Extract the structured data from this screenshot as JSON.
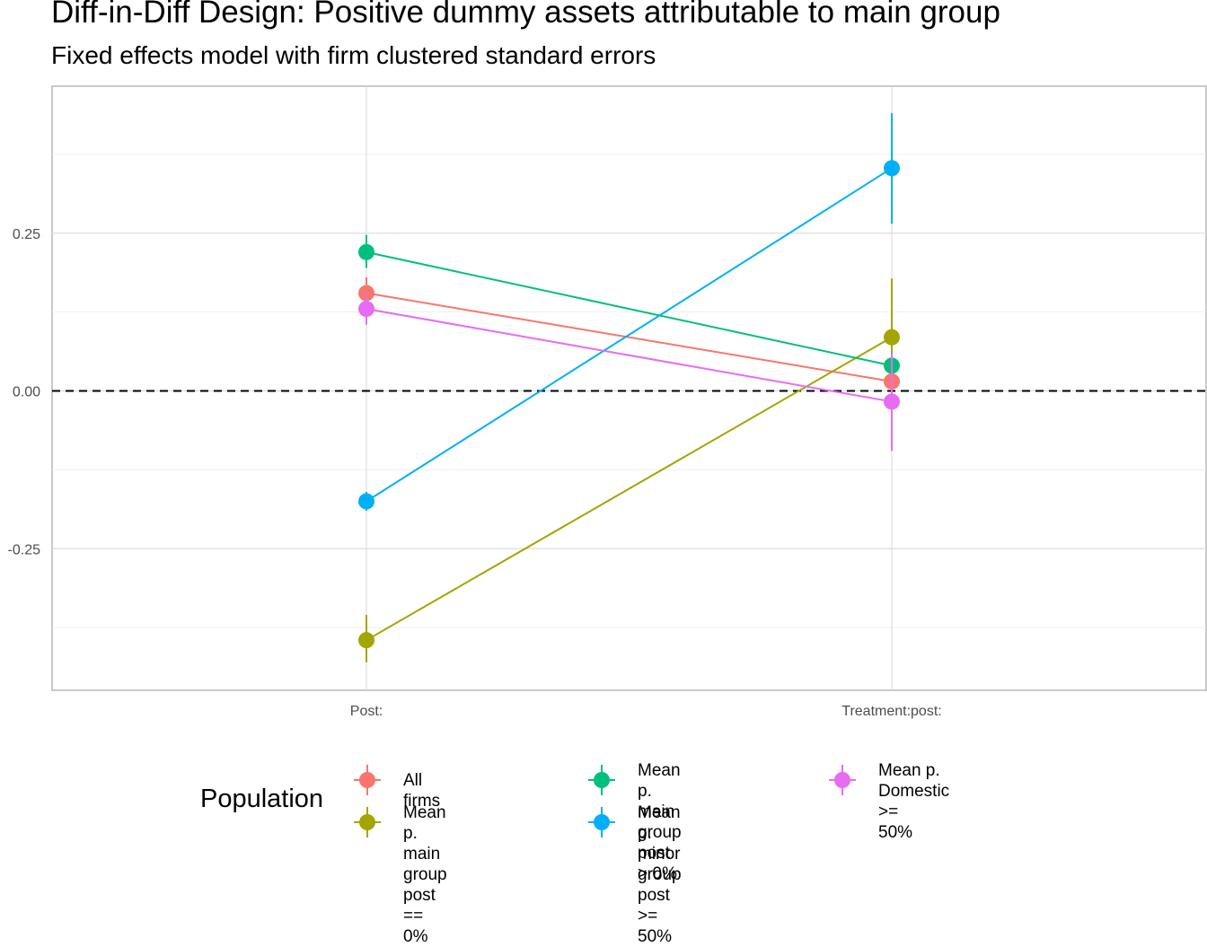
{
  "chart_data": {
    "type": "line",
    "title": "Diff-in-Diff Design: Positive dummy assets attributable to main group",
    "subtitle": "Fixed effects model with firm clustered standard errors",
    "categories": [
      "Post:",
      "Treatment:post:"
    ],
    "ylim": [
      -0.475,
      0.48
    ],
    "yticks": [
      -0.25,
      0.0,
      0.25
    ],
    "ytick_labels": [
      "-0.25",
      "0.00",
      "0.25"
    ],
    "reference_line": {
      "y": 0,
      "style": "dashed"
    },
    "grid": true,
    "legend": {
      "title": "Population",
      "position": "bottom"
    },
    "series": [
      {
        "name": "All firms",
        "color": "#F8766D",
        "values": [
          0.155,
          0.015
        ],
        "ci_low": [
          0.13,
          -0.005
        ],
        "ci_high": [
          0.18,
          0.035
        ]
      },
      {
        "name": "Mean p. main group\npost == 0%",
        "color": "#A3A500",
        "values": [
          -0.395,
          0.085
        ],
        "ci_low": [
          -0.43,
          -0.01
        ],
        "ci_high": [
          -0.355,
          0.178
        ]
      },
      {
        "name": "Mean p. main group\npost > 0%",
        "color": "#00BF7D",
        "values": [
          0.22,
          0.04
        ],
        "ci_low": [
          0.195,
          0.02
        ],
        "ci_high": [
          0.247,
          0.06
        ]
      },
      {
        "name": "Mean p. minor group\npost >= 50%",
        "color": "#00B0F6",
        "values": [
          -0.175,
          0.353
        ],
        "ci_low": [
          -0.19,
          0.265
        ],
        "ci_high": [
          -0.16,
          0.44
        ]
      },
      {
        "name": "Mean p. Domestic >=\n50%",
        "color": "#E76BF3",
        "values": [
          0.13,
          -0.017
        ],
        "ci_low": [
          0.105,
          -0.095
        ],
        "ci_high": [
          0.155,
          0.06
        ]
      }
    ]
  }
}
